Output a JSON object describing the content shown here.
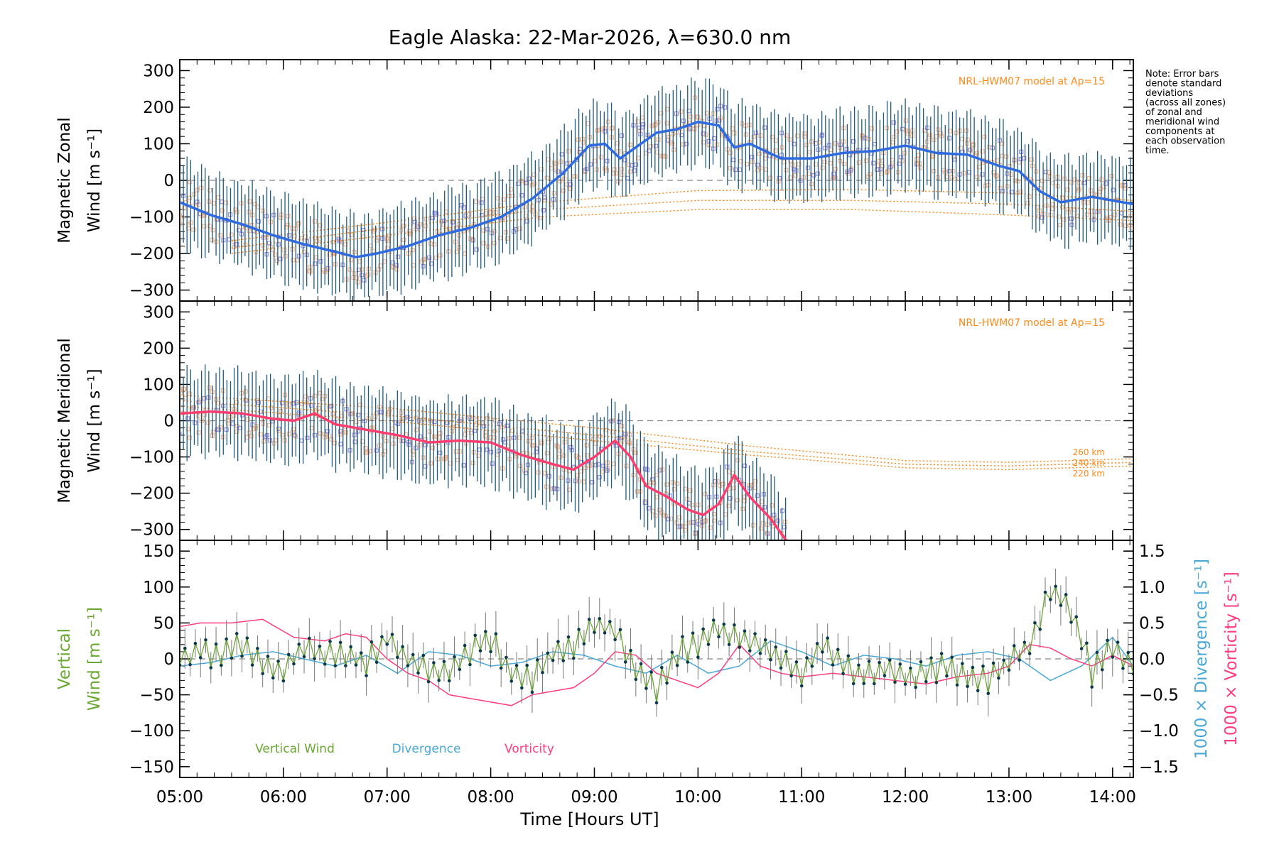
{
  "title": "Eagle Alaska: 22-Mar-2026, λ=630.0 nm",
  "note_lines": [
    "Note: Error bars",
    "denote standard",
    "deviations",
    "(across all zones)",
    "of zonal and",
    "meridional wind",
    "components at",
    "each observation",
    "time."
  ],
  "x_axis": {
    "label": "Time [Hours UT]",
    "range_hours": [
      5.0,
      14.2
    ],
    "ticks": [
      5,
      6,
      7,
      8,
      9,
      10,
      11,
      12,
      13,
      14
    ],
    "tick_labels": [
      "05:00",
      "06:00",
      "07:00",
      "08:00",
      "09:00",
      "10:00",
      "11:00",
      "12:00",
      "13:00",
      "14:00"
    ]
  },
  "colors": {
    "zonal": "#2f6be0",
    "meridional": "#ff3d6e",
    "vertical": "#6aa832",
    "divergence": "#4aa8d8",
    "vorticity": "#ff3d80",
    "model": "#ff8a1a",
    "errorbar": "#1f5a7a",
    "scatter_purple": "#9b8fe0",
    "scatter_peach": "#f7b890"
  },
  "chart_data": [
    {
      "type": "line",
      "panel": "zonal",
      "ylabel_line1": "Magnetic Zonal",
      "ylabel_line2": "Wind [m s⁻¹]",
      "ylim": [
        -330,
        330
      ],
      "yticks": [
        -300,
        -200,
        -100,
        0,
        100,
        200,
        300
      ],
      "ytick_labels": [
        "−300",
        "−200",
        "−100",
        "0",
        "100",
        "200",
        "300"
      ],
      "model_label": "NRL-HWM07 model at Ap=15",
      "series": [
        {
          "name": "Zonal mean wind",
          "x": [
            5.0,
            5.3,
            5.6,
            5.9,
            6.2,
            6.5,
            6.7,
            6.9,
            7.2,
            7.5,
            7.8,
            8.1,
            8.4,
            8.7,
            8.95,
            9.1,
            9.25,
            9.4,
            9.6,
            9.8,
            10.0,
            10.2,
            10.35,
            10.5,
            10.8,
            11.1,
            11.4,
            11.7,
            12.0,
            12.3,
            12.6,
            12.9,
            13.1,
            13.3,
            13.5,
            13.8,
            14.2
          ],
          "y": [
            -60,
            -95,
            -120,
            -150,
            -175,
            -195,
            -210,
            -200,
            -180,
            -150,
            -130,
            -100,
            -50,
            20,
            95,
            100,
            60,
            90,
            130,
            140,
            160,
            150,
            90,
            100,
            60,
            60,
            75,
            80,
            95,
            75,
            70,
            40,
            25,
            -30,
            -60,
            -45,
            -65
          ]
        }
      ],
      "model_curves": [
        {
          "name": "model 1",
          "x": [
            5.5,
            7,
            8.5,
            10,
            11.5,
            13,
            14.2
          ],
          "y": [
            -165,
            -115,
            -60,
            -28,
            -25,
            -35,
            -55
          ]
        },
        {
          "name": "model 2",
          "x": [
            5.5,
            7,
            8.5,
            10,
            11.5,
            13,
            14.2
          ],
          "y": [
            -185,
            -130,
            -80,
            -55,
            -55,
            -65,
            -85
          ]
        },
        {
          "name": "model 3",
          "x": [
            5.5,
            7,
            8.5,
            10,
            11.5,
            13,
            14.2
          ],
          "y": [
            -200,
            -150,
            -100,
            -80,
            -80,
            -95,
            -110
          ]
        }
      ]
    },
    {
      "type": "line",
      "panel": "meridional",
      "ylabel_line1": "Magnetic Meridional",
      "ylabel_line2": "Wind [m s⁻¹]",
      "ylim": [
        -330,
        330
      ],
      "yticks": [
        -300,
        -200,
        -100,
        0,
        100,
        200,
        300
      ],
      "ytick_labels": [
        "−300",
        "−200",
        "−100",
        "0",
        "100",
        "200",
        "300"
      ],
      "model_label": "NRL-HWM07 model at Ap=15",
      "model_altitudes": [
        "260 km",
        "240 km",
        "220 km"
      ],
      "series": [
        {
          "name": "Meridional mean wind",
          "x": [
            5.0,
            5.3,
            5.6,
            5.9,
            6.1,
            6.3,
            6.5,
            6.8,
            7.1,
            7.4,
            7.7,
            8.0,
            8.3,
            8.6,
            8.8,
            9.0,
            9.2,
            9.35,
            9.5,
            9.7,
            9.9,
            10.05,
            10.2,
            10.35,
            10.5,
            10.7,
            10.85
          ],
          "y": [
            20,
            25,
            20,
            5,
            0,
            20,
            -10,
            -25,
            -40,
            -60,
            -55,
            -60,
            -95,
            -120,
            -135,
            -100,
            -55,
            -100,
            -180,
            -210,
            -245,
            -260,
            -230,
            -150,
            -210,
            -270,
            -330
          ]
        }
      ],
      "model_curves": [
        {
          "name": "260 km",
          "x": [
            5.0,
            7,
            9,
            10.5,
            12,
            13,
            14.2
          ],
          "y": [
            70,
            35,
            -20,
            -70,
            -110,
            -115,
            -105
          ]
        },
        {
          "name": "240 km",
          "x": [
            5.0,
            7,
            9,
            10.5,
            12,
            13,
            14.2
          ],
          "y": [
            55,
            15,
            -40,
            -85,
            -120,
            -125,
            -115
          ]
        },
        {
          "name": "220 km",
          "x": [
            5.0,
            7,
            9,
            10.5,
            12,
            13,
            14.2
          ],
          "y": [
            40,
            0,
            -55,
            -95,
            -130,
            -135,
            -125
          ]
        }
      ]
    },
    {
      "type": "line",
      "panel": "vertical",
      "ylabel_line1": "Vertical",
      "ylabel_line2": "Wind [m s⁻¹]",
      "ylim": [
        -165,
        165
      ],
      "yticks": [
        -150,
        -100,
        -50,
        0,
        50,
        100,
        150
      ],
      "ytick_labels": [
        "−150",
        "−100",
        "−50",
        "0",
        "50",
        "100",
        "150"
      ],
      "y2lim": [
        -1.65,
        1.65
      ],
      "y2ticks": [
        -1.5,
        -1.0,
        -0.5,
        0.0,
        0.5,
        1.0,
        1.5
      ],
      "y2tick_labels": [
        "−1.5",
        "−1.0",
        "−0.5",
        "0.0",
        "0.5",
        "1.0",
        "1.5"
      ],
      "y2label_divergence": "1000 × Divergence [s⁻¹]",
      "y2label_vorticity": "1000 × Vorticity [s⁻¹]",
      "legend": [
        "Vertical Wind",
        "Divergence",
        "Vorticity"
      ],
      "series": [
        {
          "name": "Vertical Wind",
          "x": [
            5.0,
            5.2,
            5.4,
            5.6,
            5.8,
            6.0,
            6.2,
            6.4,
            6.6,
            6.8,
            7.0,
            7.2,
            7.4,
            7.6,
            7.8,
            8.0,
            8.2,
            8.4,
            8.6,
            8.8,
            9.0,
            9.2,
            9.4,
            9.6,
            9.8,
            10.0,
            10.2,
            10.4,
            10.6,
            10.8,
            11.0,
            11.2,
            11.4,
            11.6,
            11.8,
            12.0,
            12.2,
            12.4,
            12.6,
            12.8,
            13.0,
            13.2,
            13.4,
            13.6,
            13.8,
            14.0,
            14.2
          ],
          "y": [
            0,
            10,
            5,
            20,
            -10,
            -15,
            20,
            5,
            10,
            -5,
            30,
            0,
            -15,
            -20,
            10,
            30,
            -20,
            -30,
            10,
            20,
            50,
            40,
            -10,
            -45,
            10,
            20,
            40,
            30,
            20,
            0,
            -20,
            20,
            -10,
            -20,
            -15,
            -25,
            -20,
            -10,
            -30,
            -30,
            -5,
            20,
            100,
            70,
            -20,
            20,
            -10
          ]
        },
        {
          "name": "Divergence",
          "x": [
            5.0,
            5.3,
            5.6,
            5.9,
            6.2,
            6.5,
            6.8,
            7.1,
            7.4,
            7.7,
            8.0,
            8.3,
            8.6,
            8.9,
            9.2,
            9.5,
            9.8,
            10.1,
            10.4,
            10.7,
            11.0,
            11.3,
            11.6,
            11.9,
            12.2,
            12.5,
            12.8,
            13.1,
            13.4,
            13.7,
            14.0,
            14.2
          ],
          "y": [
            -0.1,
            -0.05,
            0.05,
            0.1,
            0.0,
            -0.1,
            0.05,
            -0.2,
            0.1,
            0.05,
            -0.1,
            -0.05,
            0.1,
            0.05,
            -0.1,
            -0.2,
            0.05,
            -0.2,
            -0.1,
            0.25,
            0.1,
            -0.1,
            0.05,
            0.0,
            -0.1,
            0.05,
            0.1,
            0.0,
            -0.3,
            -0.1,
            0.3,
            -0.1
          ]
        },
        {
          "name": "Vorticity",
          "x": [
            5.0,
            5.2,
            5.5,
            5.8,
            6.1,
            6.4,
            6.6,
            6.8,
            7.0,
            7.2,
            7.4,
            7.6,
            7.8,
            8.0,
            8.2,
            8.4,
            8.6,
            8.8,
            9.0,
            9.2,
            9.4,
            9.6,
            9.8,
            10.0,
            10.2,
            10.4,
            10.6,
            10.8,
            11.0,
            11.3,
            11.6,
            11.9,
            12.2,
            12.5,
            12.8,
            13.0,
            13.2,
            13.4,
            13.6,
            13.8,
            14.0,
            14.2
          ],
          "y": [
            0.45,
            0.5,
            0.5,
            0.55,
            0.3,
            0.25,
            0.35,
            0.3,
            0.0,
            -0.2,
            -0.3,
            -0.5,
            -0.55,
            -0.6,
            -0.65,
            -0.5,
            -0.45,
            -0.4,
            -0.2,
            0.1,
            0.05,
            -0.2,
            -0.3,
            -0.4,
            -0.2,
            0.2,
            -0.1,
            -0.2,
            -0.25,
            -0.2,
            -0.25,
            -0.3,
            -0.35,
            -0.25,
            -0.2,
            -0.1,
            0.2,
            0.15,
            0.0,
            -0.1,
            0.05,
            -0.1
          ]
        }
      ]
    }
  ]
}
